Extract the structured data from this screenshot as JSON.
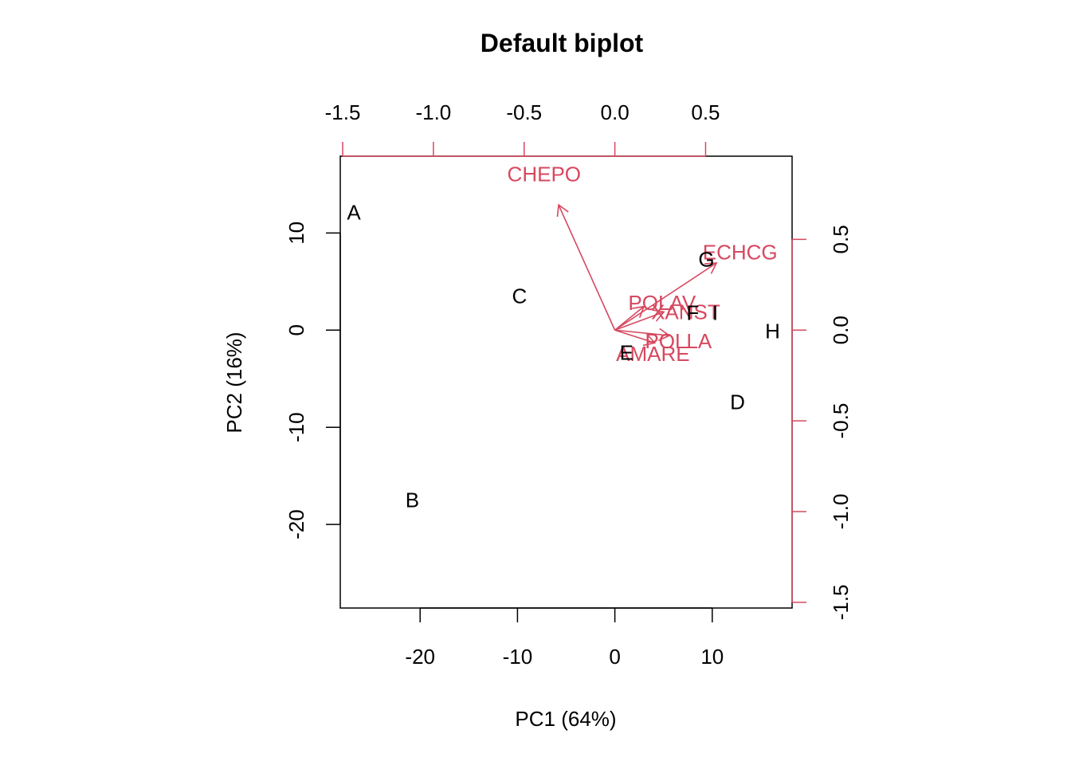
{
  "chart_data": {
    "type": "scatter",
    "title": "Default biplot",
    "xlabel": "PC1 (64%)",
    "ylabel": "PC2 (16%)",
    "xlim": [
      -28.2,
      18.2
    ],
    "ylim": [
      -28.6,
      17.9
    ],
    "x_ticks": [
      -20,
      -10,
      0,
      10
    ],
    "y_ticks": [
      -20,
      -10,
      0,
      10
    ],
    "loading_xlim": [
      -1.5,
      0.5
    ],
    "loading_x_ticks": [
      -1.5,
      -1.0,
      -0.5,
      0.0,
      0.5
    ],
    "loading_y_ticks": [
      -1.5,
      -1.0,
      -0.5,
      0.0,
      0.5
    ],
    "loading_x_tick_labels": [
      "-1.5",
      "-1.0",
      "-0.5",
      "0.0",
      "0.5"
    ],
    "loading_y_tick_labels": [
      "-1.5",
      "-1.0",
      "-0.5",
      "0.0",
      "0.5"
    ],
    "grid": false,
    "observations": [
      {
        "label": "A",
        "x": -26.8,
        "y": 12.1
      },
      {
        "label": "B",
        "x": -20.8,
        "y": -17.5
      },
      {
        "label": "C",
        "x": -9.8,
        "y": 3.5
      },
      {
        "label": "D",
        "x": 12.6,
        "y": -7.4
      },
      {
        "label": "E",
        "x": 1.2,
        "y": -2.3
      },
      {
        "label": "F",
        "x": 8.0,
        "y": 1.8
      },
      {
        "label": "G",
        "x": 9.4,
        "y": 7.3
      },
      {
        "label": "H",
        "x": 16.2,
        "y": -0.1
      },
      {
        "label": "I",
        "x": 10.3,
        "y": 1.8
      }
    ],
    "loadings": [
      {
        "label": "CHEPO",
        "x": -0.31,
        "y": 0.69,
        "label_x": -0.39,
        "label_y": 0.86
      },
      {
        "label": "ECHCG",
        "x": 0.56,
        "y": 0.37,
        "label_x": 0.69,
        "label_y": 0.43
      },
      {
        "label": "POLAV",
        "x": 0.16,
        "y": 0.13,
        "label_x": 0.26,
        "label_y": 0.15
      },
      {
        "label": "XANST",
        "x": 0.27,
        "y": 0.1,
        "label_x": 0.39,
        "label_y": 0.1
      },
      {
        "label": "POLLA",
        "x": 0.3,
        "y": -0.03,
        "label_x": 0.35,
        "label_y": -0.06
      },
      {
        "label": "AMARE",
        "x": 0.22,
        "y": -0.07,
        "label_x": 0.21,
        "label_y": -0.13
      }
    ],
    "colors": {
      "observation": "#000000",
      "loading": "#d7485f",
      "axes": "#000000"
    }
  }
}
